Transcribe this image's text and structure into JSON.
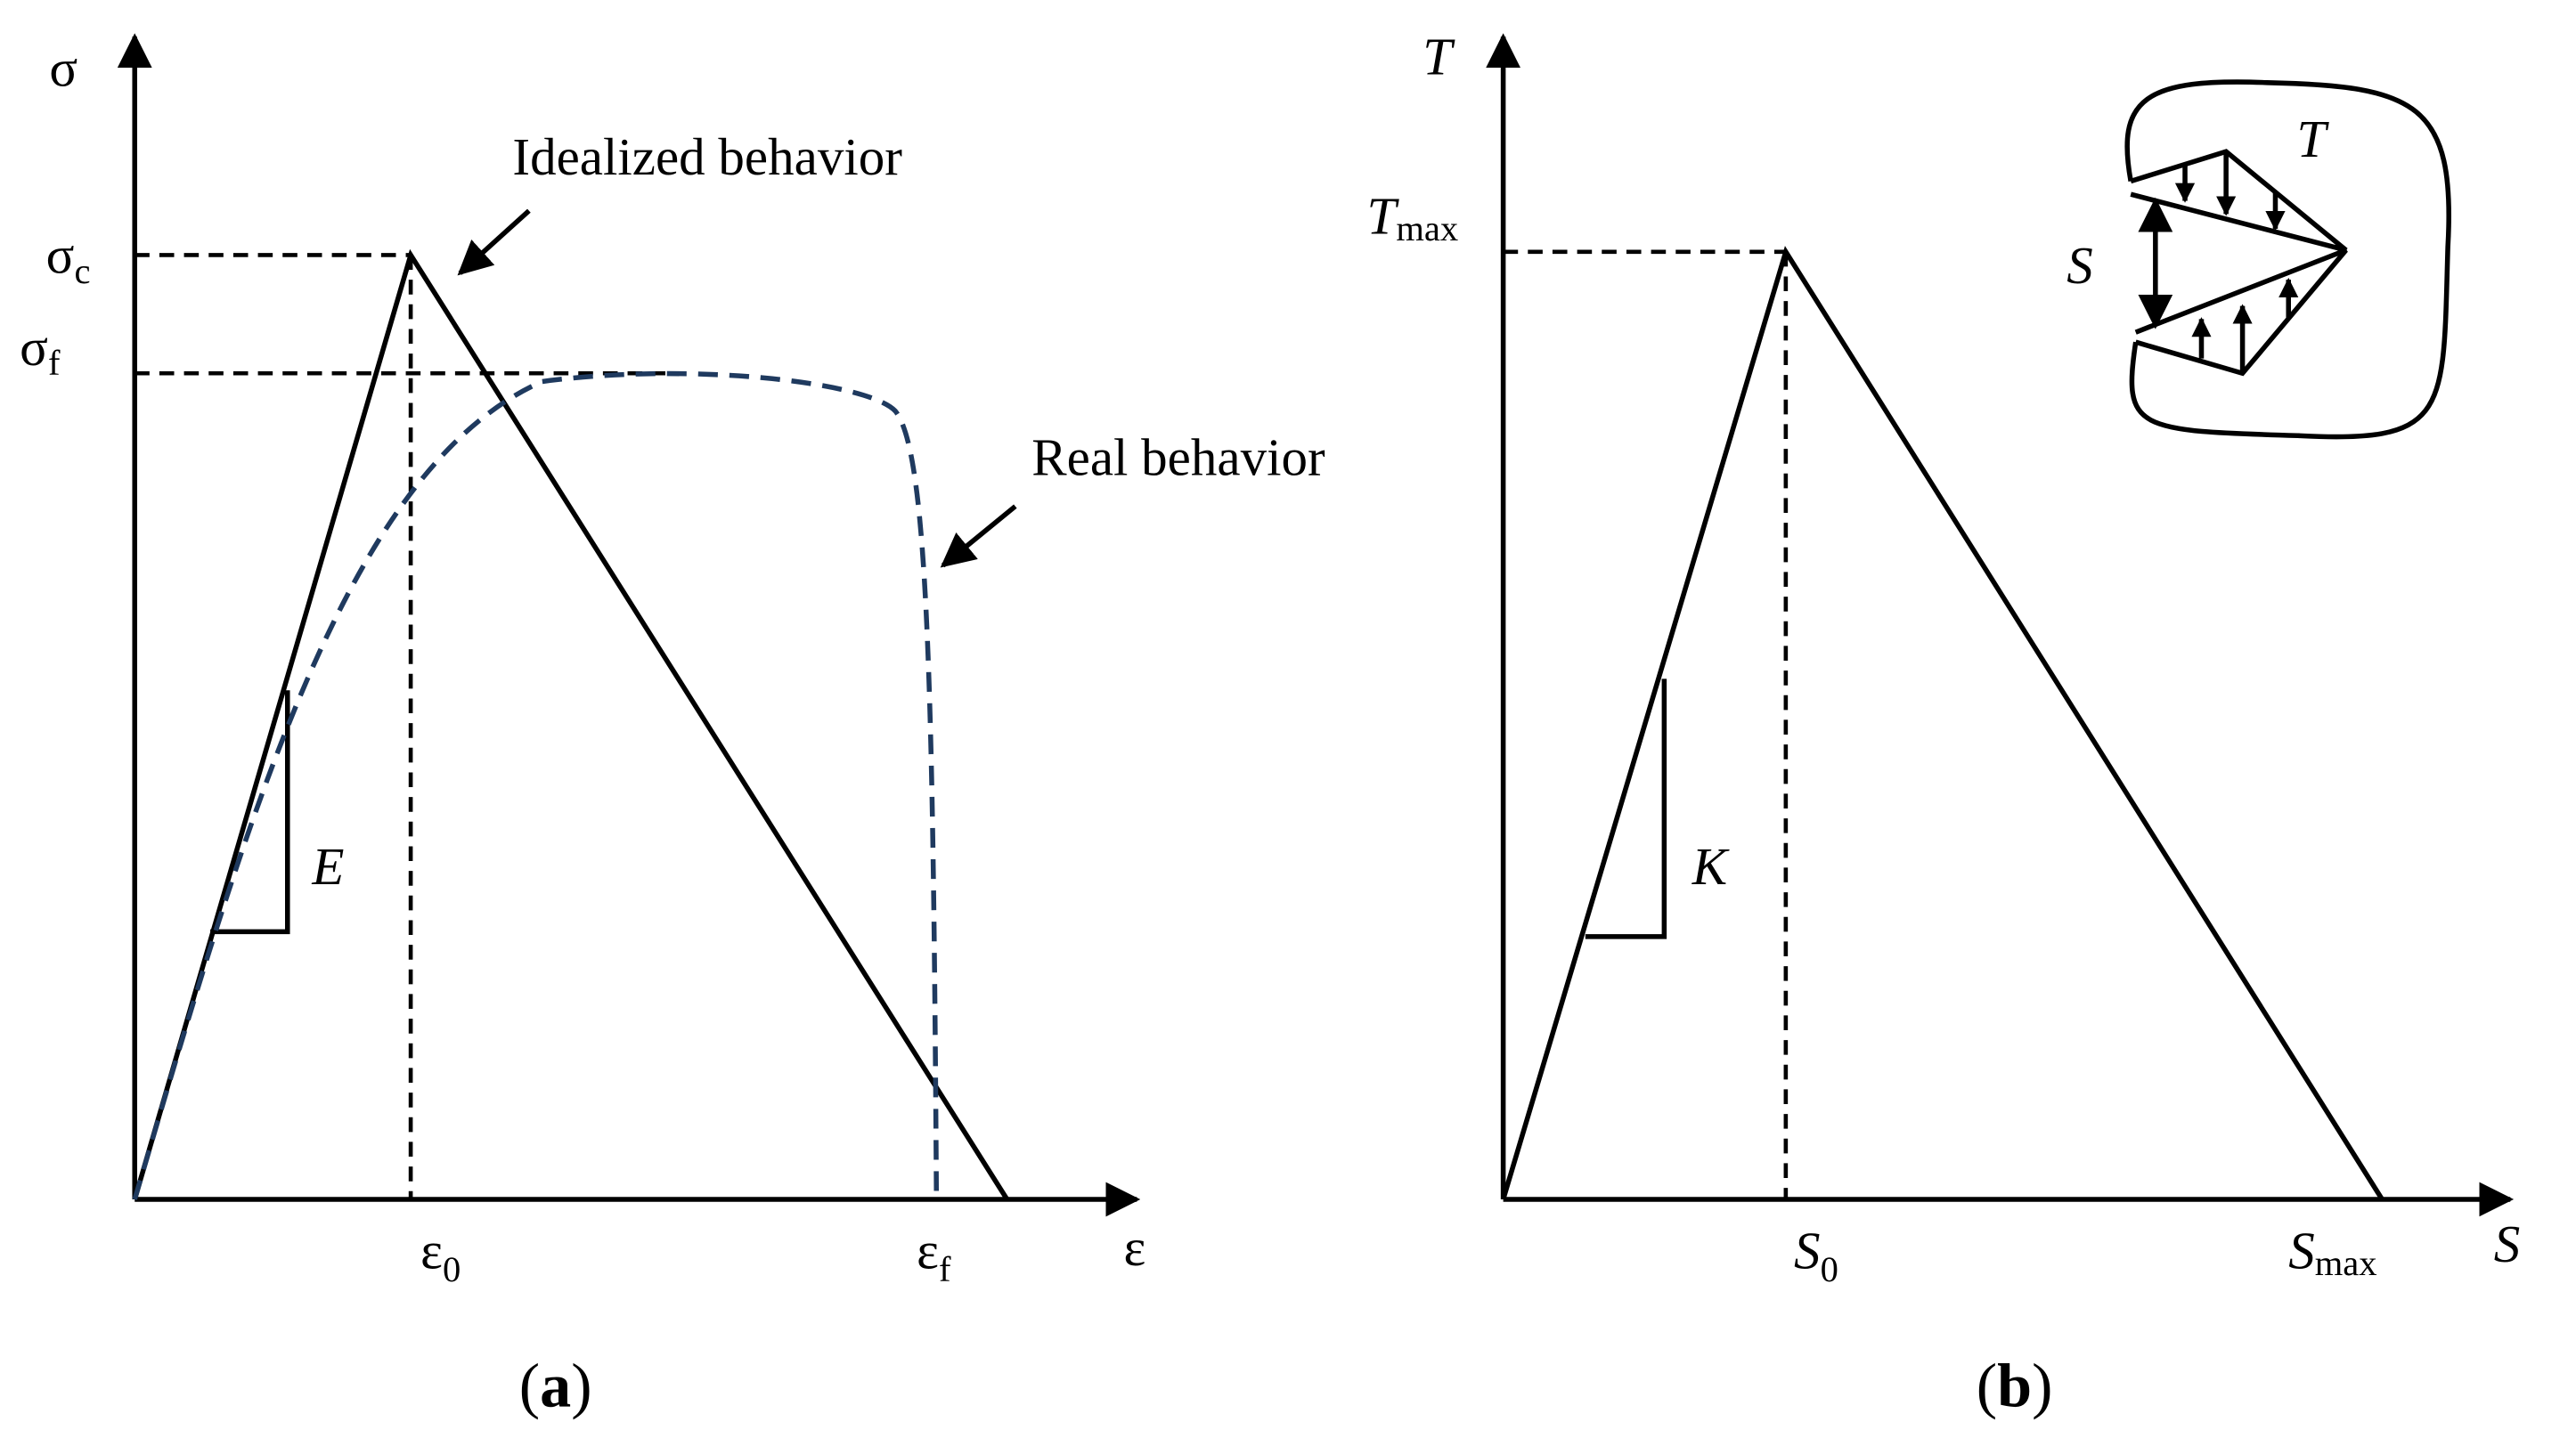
{
  "panel_a": {
    "y_axis": {
      "symbol": "σ"
    },
    "x_axis": {
      "symbol": "ε"
    },
    "sigma_c": {
      "symbol": "σ",
      "subscript": "c"
    },
    "sigma_f": {
      "symbol": "σ",
      "subscript": "f"
    },
    "epsilon_0": {
      "symbol": "ε",
      "subscript": "0"
    },
    "epsilon_f": {
      "symbol": "ε",
      "subscript": "f"
    },
    "slope_label": "E",
    "idealized_label": "Idealized behavior",
    "real_label": "Real behavior",
    "caption": {
      "open": "(",
      "letter": "a",
      "close": ")"
    }
  },
  "panel_b": {
    "y_axis": {
      "symbol": "T"
    },
    "x_axis": {
      "symbol": "S"
    },
    "t_max": {
      "symbol": "T",
      "subscript": "max"
    },
    "s_0": {
      "symbol": "S",
      "subscript": "0"
    },
    "s_max": {
      "symbol": "S",
      "subscript": "max"
    },
    "slope_label": "K",
    "inset": {
      "traction": "T",
      "separation": "S"
    },
    "caption": {
      "open": "(",
      "letter": "b",
      "close": ")"
    }
  }
}
